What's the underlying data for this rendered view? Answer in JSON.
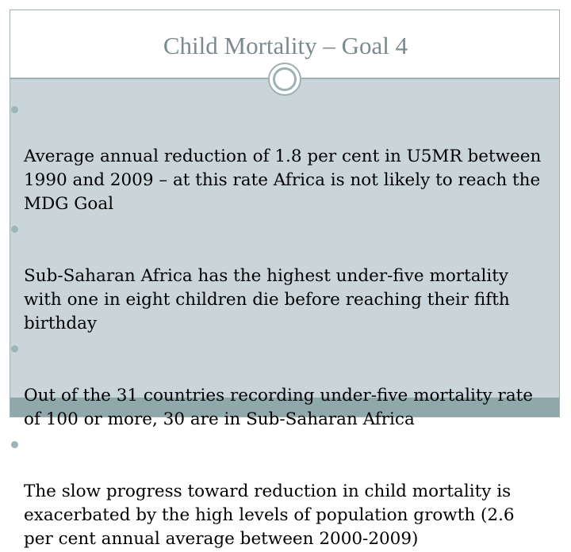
{
  "slide": {
    "title": "Child Mortality – Goal 4",
    "bullets": [
      "Average annual reduction of 1.8 per cent in U5MR between\n1990 and 2009 – at this rate Africa is not likely to reach the\nMDG Goal",
      "Sub-Saharan Africa has the highest under-five mortality\nwith one in eight children die before reaching their fifth\nbirthday",
      "Out of the 31 countries recording under-five mortality rate\nof 100 or more, 30 are in Sub-Saharan Africa",
      " The slow progress toward reduction in child mortality is\nexacerbated by the high levels of population growth (2.6\nper cent annual average between 2000-2009)"
    ]
  },
  "colors": {
    "content_bg": "#c9d5d9",
    "bar": "#8fa8ab",
    "border": "#9fb0b3",
    "title_text": "#7a8a8e",
    "bullet": "#9db4b8"
  }
}
